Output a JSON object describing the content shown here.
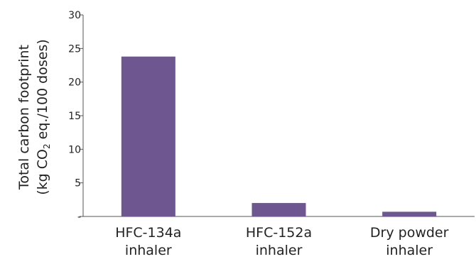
{
  "chart_data": {
    "type": "bar",
    "categories": [
      [
        "HFC-134a",
        "inhaler"
      ],
      [
        "HFC-152a",
        "inhaler"
      ],
      [
        "Dry powder",
        "inhaler"
      ]
    ],
    "values": [
      23.8,
      2.0,
      0.7
    ],
    "ylim": [
      0,
      30
    ],
    "yticks": [
      0,
      5,
      10,
      15,
      20,
      25,
      30
    ],
    "ytick_labels": [
      "-",
      "5",
      "10",
      "15",
      "20",
      "25",
      "30"
    ],
    "ylabel_line1": "Total carbon footprint",
    "ylabel_line2": {
      "before": "(kg CO",
      "sub": "2",
      "after": " eq./100 doses)"
    },
    "bar_color": "#6e5690",
    "axis_color": "#555555",
    "grid": false,
    "legend": "none"
  }
}
